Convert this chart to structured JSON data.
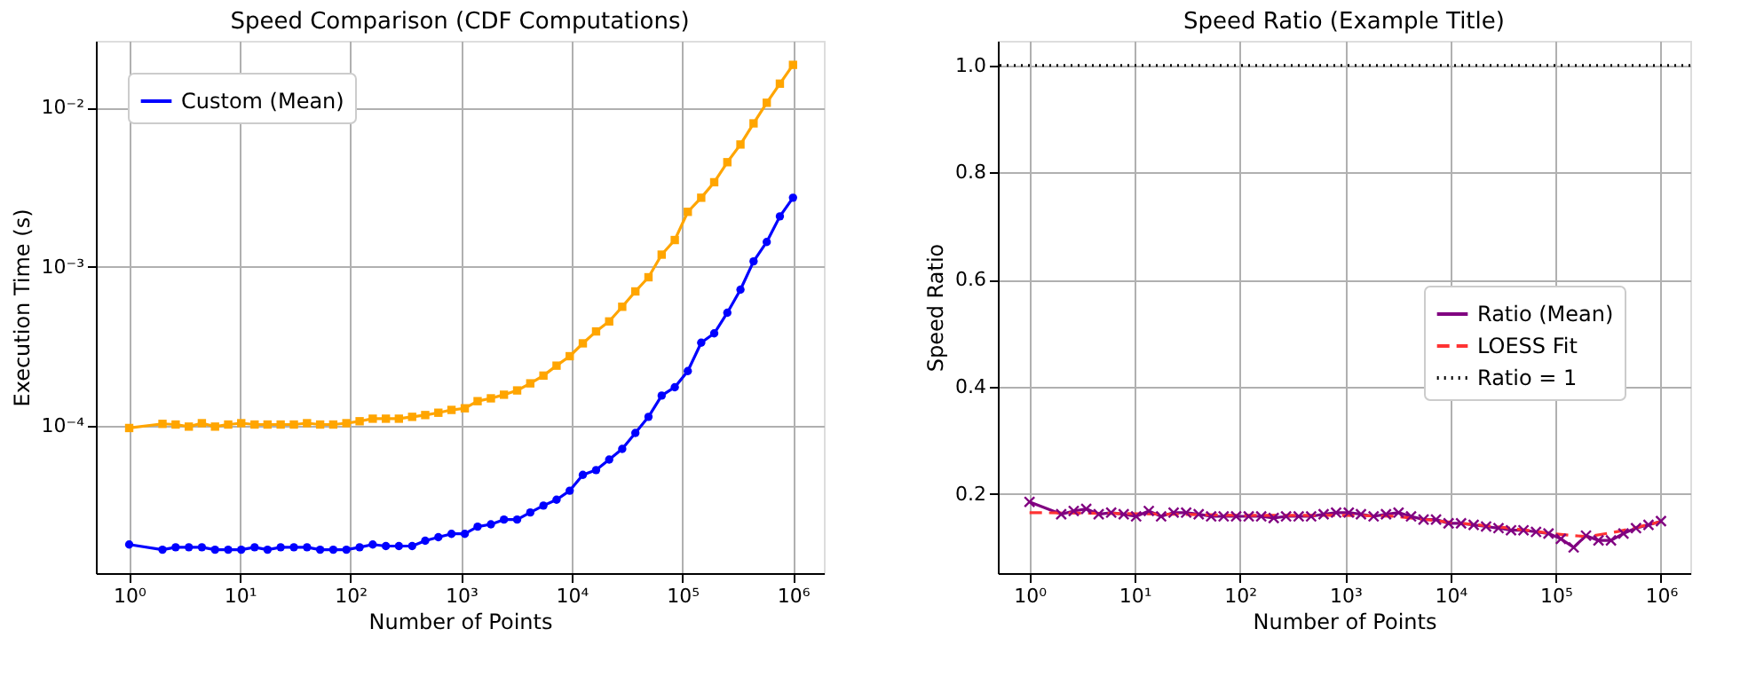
{
  "chart_data": [
    {
      "type": "line",
      "title": "Speed Comparison (CDF Computations)",
      "xlabel": "Number of Points",
      "ylabel": "Execution Time (s)",
      "x": [
        1,
        2,
        2.63,
        3.46,
        4.54,
        5.97,
        7.85,
        10.3,
        13.6,
        17.8,
        23.4,
        30.8,
        40.5,
        53.2,
        69.9,
        91.9,
        121,
        159,
        209,
        274,
        361,
        474,
        623,
        819,
        1080,
        1410,
        1860,
        2440,
        3210,
        4220,
        5550,
        7290,
        9590,
        12600,
        16600,
        21800,
        28600,
        37600,
        49400,
        65000,
        85400,
        112000,
        148000,
        194000,
        255000,
        335000,
        440000,
        579000,
        761000,
        1000000
      ],
      "series": [
        {
          "name": "Custom (Mean)",
          "color": "#0000ff",
          "marker": "circle",
          "values": [
            1.8e-05,
            1.67e-05,
            1.73e-05,
            1.73e-05,
            1.73e-05,
            1.67e-05,
            1.67e-05,
            1.67e-05,
            1.73e-05,
            1.67e-05,
            1.73e-05,
            1.73e-05,
            1.73e-05,
            1.67e-05,
            1.67e-05,
            1.67e-05,
            1.73e-05,
            1.8e-05,
            1.76e-05,
            1.76e-05,
            1.76e-05,
            1.9e-05,
            2e-05,
            2.1e-05,
            2.1e-05,
            2.33e-05,
            2.41e-05,
            2.58e-05,
            2.58e-05,
            2.86e-05,
            3.16e-05,
            3.44e-05,
            3.92e-05,
            4.93e-05,
            5.28e-05,
            6.15e-05,
            7.17e-05,
            9.03e-05,
            0.000114,
            0.000155,
            0.000175,
            0.000221,
            0.000333,
            0.000381,
            0.000514,
            0.000717,
            0.00108,
            0.00143,
            0.00207,
            0.00271
          ]
        },
        {
          "color": "#ffa500",
          "marker": "square",
          "values": [
            9.7e-05,
            0.000103,
            0.000102,
            9.9e-05,
            0.000104,
            9.9e-05,
            0.000102,
            0.000104,
            0.000102,
            0.000102,
            0.000102,
            0.000102,
            0.000104,
            0.000102,
            0.000102,
            0.000104,
            0.000107,
            0.000111,
            0.000111,
            0.000111,
            0.000114,
            0.000117,
            0.000121,
            0.000126,
            0.000129,
            0.000143,
            0.000149,
            0.000157,
            0.000167,
            0.000185,
            0.000207,
            0.000239,
            0.000274,
            0.00033,
            0.000392,
            0.000453,
            0.00056,
            0.000699,
            0.000858,
            0.00119,
            0.00147,
            0.00221,
            0.00271,
            0.00339,
            0.00453,
            0.00585,
            0.00794,
            0.0107,
            0.0141,
            0.0185
          ]
        }
      ],
      "log": "xy",
      "xlim": [
        0.5,
        1900000
      ],
      "ylim": [
        1.19e-05,
        0.0262
      ],
      "xticks": [
        {
          "value": 1,
          "label": "10⁰"
        },
        {
          "value": 10,
          "label": "10¹"
        },
        {
          "value": 100,
          "label": "10²"
        },
        {
          "value": 1000,
          "label": "10³"
        },
        {
          "value": 10000,
          "label": "10⁴"
        },
        {
          "value": 100000,
          "label": "10⁵"
        },
        {
          "value": 1000000,
          "label": "10⁶"
        }
      ],
      "yticks": [
        {
          "value": 0.0001,
          "label": "10⁻⁴"
        },
        {
          "value": 0.001,
          "label": "10⁻³"
        },
        {
          "value": 0.01,
          "label": "10⁻²"
        }
      ],
      "grid": true,
      "legend": "top left"
    },
    {
      "type": "line",
      "title": "Speed Ratio (Example Title)",
      "xlabel": "Number of Points",
      "ylabel": "Speed Ratio",
      "x": [
        1,
        2,
        2.63,
        3.46,
        4.54,
        5.97,
        7.85,
        10.3,
        13.6,
        17.8,
        23.4,
        30.8,
        40.5,
        53.2,
        69.9,
        91.9,
        121,
        159,
        209,
        274,
        361,
        474,
        623,
        819,
        1080,
        1410,
        1860,
        2440,
        3210,
        4220,
        5550,
        7290,
        9590,
        12600,
        16600,
        21800,
        28600,
        37600,
        49400,
        65000,
        85400,
        112000,
        148000,
        194000,
        255000,
        335000,
        440000,
        579000,
        761000,
        1000000
      ],
      "series": [
        {
          "name": "Ratio (Mean)",
          "color": "#800080",
          "marker": "cross",
          "values": [
            0.185,
            0.162,
            0.168,
            0.172,
            0.162,
            0.165,
            0.162,
            0.158,
            0.168,
            0.158,
            0.165,
            0.165,
            0.162,
            0.158,
            0.158,
            0.158,
            0.158,
            0.158,
            0.155,
            0.158,
            0.158,
            0.158,
            0.162,
            0.165,
            0.165,
            0.162,
            0.158,
            0.162,
            0.165,
            0.158,
            0.152,
            0.152,
            0.145,
            0.145,
            0.142,
            0.139,
            0.136,
            0.132,
            0.132,
            0.129,
            0.126,
            0.116,
            0.1,
            0.122,
            0.113,
            0.113,
            0.126,
            0.136,
            0.142,
            0.149
          ]
        },
        {
          "name": "LOESS Fit",
          "color": "#ff3333",
          "line_style": "dashed",
          "marker": "none",
          "x": [
            1,
            10,
            100,
            1000,
            3000,
            10000,
            30000,
            100000,
            200000,
            400000,
            1000000
          ],
          "values": [
            0.165,
            0.163,
            0.16,
            0.16,
            0.158,
            0.147,
            0.138,
            0.125,
            0.12,
            0.13,
            0.148
          ]
        }
      ],
      "ref_lines": [
        {
          "axis": "y",
          "value": 1.0,
          "label": "Ratio = 1",
          "color": "#000000",
          "line_style": "dotted"
        }
      ],
      "log": "x",
      "xlim": [
        0.5,
        1900000
      ],
      "ylim": [
        0.052,
        1.046
      ],
      "xticks": [
        {
          "value": 1,
          "label": "10⁰"
        },
        {
          "value": 10,
          "label": "10¹"
        },
        {
          "value": 100,
          "label": "10²"
        },
        {
          "value": 1000,
          "label": "10³"
        },
        {
          "value": 10000,
          "label": "10⁴"
        },
        {
          "value": 100000,
          "label": "10⁵"
        },
        {
          "value": 1000000,
          "label": "10⁶"
        }
      ],
      "yticks": [
        0.2,
        0.4,
        0.6,
        0.8,
        {
          "value": 1.0,
          "label": "1.0"
        }
      ],
      "grid": true,
      "legend": "right"
    }
  ]
}
